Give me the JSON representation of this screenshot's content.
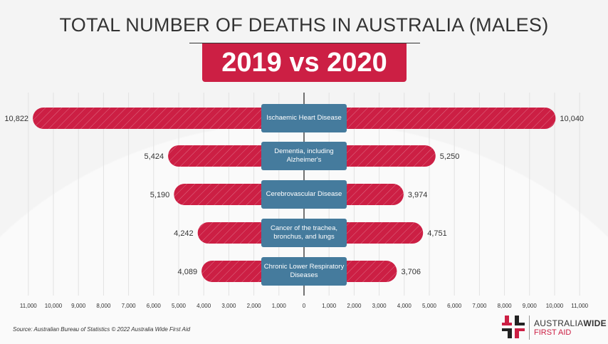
{
  "chart_data": {
    "type": "bar",
    "orientation": "horizontal-butterfly",
    "title": "TOTAL NUMBER OF DEATHS IN AUSTRALIA (MALES)",
    "subtitle": "2019 vs 2020",
    "categories": [
      "Ischaemic Heart Disease",
      "Dementia, including Alzheimer's",
      "Cerebrovascular Disease",
      "Cancer of the trachea, bronchus, and lungs",
      "Chronic Lower Respiratory Diseases"
    ],
    "series": [
      {
        "side": "left",
        "values": [
          10822,
          5424,
          5190,
          4242,
          4089
        ],
        "labels": [
          "10,822",
          "5,424",
          "5,190",
          "4,242",
          "4,089"
        ]
      },
      {
        "side": "right",
        "values": [
          10040,
          5250,
          3974,
          4751,
          3706
        ],
        "labels": [
          "10,040",
          "5,250",
          "3,974",
          "4,751",
          "3,706"
        ]
      }
    ],
    "xlim": [
      0,
      11000
    ],
    "xticks": [
      "11,000",
      "10,000",
      "9,000",
      "8,000",
      "7,000",
      "6,000",
      "5,000",
      "4,000",
      "3,000",
      "2,000",
      "1,000",
      "0",
      "1,000",
      "2,000",
      "3,000",
      "4,000",
      "5,000",
      "6,000",
      "7,000",
      "8,000",
      "9,000",
      "10,000",
      "11,000"
    ],
    "grid": true,
    "colors": {
      "bar": "#cc1f44",
      "label_box": "#457b9d",
      "text": "#333333"
    }
  },
  "footer": {
    "source": "Source: Australian Bureau of Statistics © 2022 Australia Wide First Aid",
    "logo_line1_a": "AUSTRALIA",
    "logo_line1_b": "WIDE",
    "logo_line2": "FIRST AID"
  }
}
